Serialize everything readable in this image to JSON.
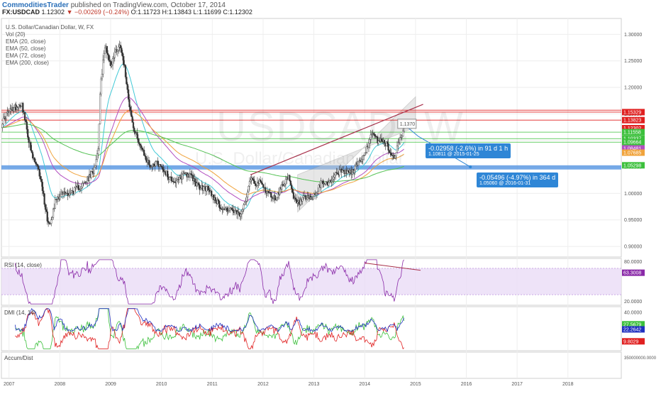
{
  "header": {
    "author": "CommoditiesTrader",
    "published": "published on TradingView.com, October 17, 2014",
    "symbol": "FX:USDCAD",
    "last": "1.12302",
    "arrow": "▼",
    "change": "−0.00269 (−0.24%)",
    "ohlc": "O:1.11723 H:1.13843 L:1.11699 C:1.12302"
  },
  "legend": {
    "title": "U.S. Dollar/Canadian Dollar, W, FX",
    "items": [
      "Vol (20)",
      "EMA (20, close)",
      "EMA (50, close)",
      "EMA (72, close)",
      "EMA (200, close)"
    ]
  },
  "watermark": {
    "line1": "USDCAD, W",
    "line2": "U.S. Dollar/Canadian Dollar"
  },
  "callouts": {
    "c1": {
      "main": "-0.02958 (-2.6%) in 91 d 1 h",
      "sub": "1.10811 @ 2015-01-25"
    },
    "c2": {
      "main": "-0.05496 (-4.97%) in 364 d",
      "sub": "1.05060 @ 2016-01-31"
    },
    "preview": "1.1370"
  },
  "panels": {
    "rsi_title": "RSI (14, close)",
    "dmi_title": "DMI (14, 14)",
    "ad_title": "Accum/Dist"
  },
  "colors": {
    "up": "#3a3a3a",
    "down": "#3a3a3a",
    "ema20": "#41c9d6",
    "ema50": "#b24ec0",
    "ema72": "#f0a33c",
    "ema200": "#55c255",
    "red_level": "#e02020",
    "green_level": "#3cc03c",
    "blue_band": "#4a8ee0",
    "trend": "#a8304a",
    "channel": "#9a9a9a",
    "rsi": "#8a2aa8",
    "rsi_band": "#eadcf6",
    "di_plus": "#3cc03c",
    "di_minus": "#e02020",
    "adx": "#2030c0",
    "callout": "#2f86d6"
  },
  "chart_data": [
    {
      "type": "candlestick",
      "title": "U.S. Dollar/Canadian Dollar, W, FX",
      "ylim": [
        0.88,
        1.33
      ],
      "yticks": [
        "1.30000",
        "1.25000",
        "1.20000",
        "1.15000",
        "1.10000",
        "1.05000",
        "1.00000",
        "0.95000",
        "0.90000"
      ],
      "ytick_values": [
        1.3,
        1.25,
        1.2,
        1.15,
        1.1,
        1.05,
        1.0,
        0.95,
        0.9
      ],
      "xlim": [
        2006.85,
        2019.05
      ],
      "xticks": [
        "2007",
        "2008",
        "2009",
        "2010",
        "2011",
        "2012",
        "2013",
        "2014",
        "2015",
        "2016",
        "2017",
        "2018"
      ],
      "xtick_values": [
        2007,
        2008,
        2009,
        2010,
        2011,
        2012,
        2013,
        2014,
        2015,
        2016,
        2017,
        2018
      ],
      "series_close_anchors": [
        [
          2006.85,
          1.13
        ],
        [
          2006.95,
          1.15
        ],
        [
          2007.08,
          1.16
        ],
        [
          2007.25,
          1.17
        ],
        [
          2007.35,
          1.12
        ],
        [
          2007.45,
          1.07
        ],
        [
          2007.55,
          1.05
        ],
        [
          2007.62,
          1.03
        ],
        [
          2007.72,
          0.97
        ],
        [
          2007.78,
          0.94
        ],
        [
          2007.85,
          0.96
        ],
        [
          2007.92,
          0.99
        ],
        [
          2008.05,
          1.0
        ],
        [
          2008.2,
          1.0
        ],
        [
          2008.35,
          1.01
        ],
        [
          2008.5,
          1.02
        ],
        [
          2008.65,
          1.04
        ],
        [
          2008.75,
          1.08
        ],
        [
          2008.8,
          1.2
        ],
        [
          2008.85,
          1.25
        ],
        [
          2008.9,
          1.28
        ],
        [
          2009.0,
          1.24
        ],
        [
          2009.1,
          1.27
        ],
        [
          2009.2,
          1.28
        ],
        [
          2009.3,
          1.22
        ],
        [
          2009.38,
          1.16
        ],
        [
          2009.45,
          1.12
        ],
        [
          2009.55,
          1.1
        ],
        [
          2009.62,
          1.08
        ],
        [
          2009.72,
          1.06
        ],
        [
          2009.8,
          1.05
        ],
        [
          2009.9,
          1.06
        ],
        [
          2010.0,
          1.05
        ],
        [
          2010.15,
          1.03
        ],
        [
          2010.3,
          1.02
        ],
        [
          2010.45,
          1.04
        ],
        [
          2010.6,
          1.03
        ],
        [
          2010.75,
          1.01
        ],
        [
          2010.9,
          1.01
        ],
        [
          2011.05,
          0.99
        ],
        [
          2011.2,
          0.97
        ],
        [
          2011.35,
          0.97
        ],
        [
          2011.5,
          0.96
        ],
        [
          2011.58,
          0.96
        ],
        [
          2011.68,
          1.0
        ],
        [
          2011.75,
          1.03
        ],
        [
          2011.85,
          1.02
        ],
        [
          2011.95,
          1.02
        ],
        [
          2012.1,
          1.0
        ],
        [
          2012.25,
          0.99
        ],
        [
          2012.4,
          1.02
        ],
        [
          2012.5,
          1.03
        ],
        [
          2012.6,
          0.99
        ],
        [
          2012.68,
          0.98
        ],
        [
          2012.8,
          0.99
        ],
        [
          2012.95,
          0.99
        ],
        [
          2013.05,
          1.0
        ],
        [
          2013.15,
          1.02
        ],
        [
          2013.3,
          1.02
        ],
        [
          2013.45,
          1.04
        ],
        [
          2013.6,
          1.04
        ],
        [
          2013.75,
          1.04
        ],
        [
          2013.88,
          1.06
        ],
        [
          2014.0,
          1.07
        ],
        [
          2014.08,
          1.1
        ],
        [
          2014.15,
          1.11
        ],
        [
          2014.25,
          1.1
        ],
        [
          2014.35,
          1.1
        ],
        [
          2014.45,
          1.09
        ],
        [
          2014.52,
          1.07
        ],
        [
          2014.58,
          1.07
        ],
        [
          2014.65,
          1.09
        ],
        [
          2014.72,
          1.11
        ],
        [
          2014.79,
          1.12
        ]
      ],
      "price_labels": [
        {
          "label": "1.15329",
          "value": 1.15329,
          "color": "#e02020"
        },
        {
          "label": "1.13823",
          "value": 1.13823,
          "color": "#e02020"
        },
        {
          "label": "1.12302",
          "value": 1.12302,
          "color": "#e02020"
        },
        {
          "label": "1.11558",
          "value": 1.11558,
          "color": "#3cc03c"
        },
        {
          "label": "1.10337",
          "value": 1.10337,
          "color": "#3cc03c"
        },
        {
          "label": "1.09664",
          "value": 1.09664,
          "color": "#3cc03c"
        },
        {
          "label": "1.08481",
          "value": 1.08481,
          "color": "#b24ec0"
        },
        {
          "label": "1.07685",
          "value": 1.07685,
          "color": "#f0a33c"
        },
        {
          "label": "1.05298",
          "value": 1.05298,
          "color": "#3cc03c"
        }
      ],
      "red_levels": [
        1.157,
        1.15329,
        1.13823
      ],
      "green_levels": [
        1.11558,
        1.10337,
        1.09664
      ],
      "blue_band": [
        1.045,
        1.053
      ]
    },
    {
      "type": "line",
      "title": "RSI (14, close)",
      "ylim": [
        14,
        85
      ],
      "yticks": [
        "80.0000",
        "20.0000"
      ],
      "ytick_values": [
        80,
        20
      ],
      "band": [
        30,
        70
      ],
      "last_label": "63.3008",
      "last_value": 63.3
    },
    {
      "type": "line",
      "title": "DMI (14, 14)",
      "ylim": [
        0,
        46
      ],
      "yticks": [
        "40.0000"
      ],
      "ytick_values": [
        40
      ],
      "labels": [
        {
          "label": "27.5679",
          "value": 27.6,
          "color": "#3cc03c"
        },
        {
          "label": "22.2642",
          "value": 22.3,
          "color": "#2030c0"
        },
        {
          "label": "9.8029",
          "value": 9.8,
          "color": "#e02020"
        }
      ]
    },
    {
      "type": "line",
      "title": "Accum/Dist",
      "yticks": [
        "350000000.0000"
      ]
    }
  ]
}
